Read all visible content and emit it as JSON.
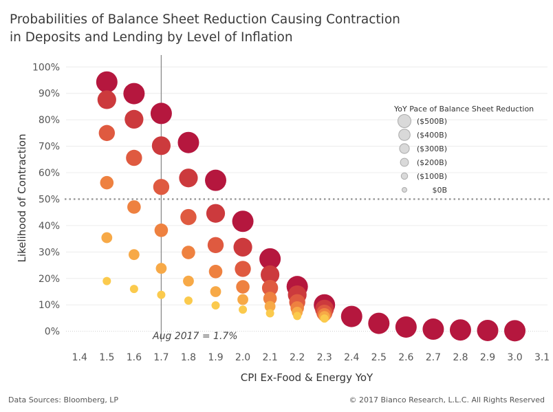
{
  "chart_data": {
    "type": "scatter",
    "title_lines": [
      "Probabilities of Balance Sheet Reduction Causing Contraction",
      "in Deposits and Lending by Level of Inflation"
    ],
    "xlabel": "CPI Ex-Food & Energy YoY",
    "ylabel": "Likelihood of Contraction",
    "xlim": [
      1.35,
      3.12
    ],
    "ylim": [
      -0.04,
      1.045
    ],
    "x_ticks": [
      "1.4",
      "1.5",
      "1.6",
      "1.7",
      "1.8",
      "1.9",
      "2.0",
      "2.1",
      "2.2",
      "2.3",
      "2.4",
      "2.5",
      "2.6",
      "2.7",
      "2.8",
      "2.9",
      "3.0",
      "3.1"
    ],
    "y_ticks": [
      "0%",
      "10%",
      "20%",
      "30%",
      "40%",
      "50%",
      "60%",
      "70%",
      "80%",
      "90%",
      "100%"
    ],
    "grid": "horizontal",
    "legend": {
      "title": "YoY Pace of Balance Sheet Reduction",
      "placement": "right",
      "entries": [
        "($500B)",
        "($400B)",
        "($300B)",
        "($200B)",
        "($100B)",
        "$0B"
      ]
    },
    "reference_lines": [
      {
        "axis": "y",
        "value": 0.5,
        "style": "dotted"
      },
      {
        "axis": "x",
        "value": 1.7,
        "label": "Aug 2017 = 1.7%"
      }
    ],
    "series": [
      {
        "name": "($500B)",
        "color": "#b5173e",
        "size": 5,
        "x": [
          1.5,
          1.6,
          1.7,
          1.8,
          1.9,
          2.0,
          2.1,
          2.2,
          2.3,
          2.4,
          2.5,
          2.6,
          2.7,
          2.8,
          2.9,
          3.0
        ],
        "y": [
          0.943,
          0.899,
          0.824,
          0.714,
          0.571,
          0.416,
          0.274,
          0.169,
          0.1,
          0.056,
          0.03,
          0.016,
          0.008,
          0.005,
          0.003,
          0.002
        ]
      },
      {
        "name": "($400B)",
        "color": "#cc3a3d",
        "size": 4,
        "x": [
          1.5,
          1.6,
          1.7,
          1.8,
          1.9,
          2.0,
          2.1,
          2.2,
          2.3
        ],
        "y": [
          0.876,
          0.802,
          0.702,
          0.58,
          0.446,
          0.318,
          0.214,
          0.138,
          0.084
        ]
      },
      {
        "name": "($300B)",
        "color": "#df5a40",
        "size": 3,
        "x": [
          1.5,
          1.6,
          1.7,
          1.8,
          1.9,
          2.0,
          2.1,
          2.2,
          2.3
        ],
        "y": [
          0.75,
          0.656,
          0.546,
          0.432,
          0.326,
          0.236,
          0.164,
          0.11,
          0.07
        ]
      },
      {
        "name": "($200B)",
        "color": "#ee8140",
        "size": 2,
        "x": [
          1.5,
          1.6,
          1.7,
          1.8,
          1.9,
          2.0,
          2.1,
          2.2,
          2.3
        ],
        "y": [
          0.562,
          0.47,
          0.382,
          0.298,
          0.226,
          0.168,
          0.124,
          0.088,
          0.062
        ]
      },
      {
        "name": "($100B)",
        "color": "#f7a947",
        "size": 1,
        "x": [
          1.5,
          1.6,
          1.7,
          1.8,
          1.9,
          2.0,
          2.1,
          2.2,
          2.3
        ],
        "y": [
          0.354,
          0.29,
          0.238,
          0.19,
          0.15,
          0.12,
          0.094,
          0.072,
          0.056
        ]
      },
      {
        "name": "$0B",
        "color": "#fbca4d",
        "size": 0,
        "x": [
          1.5,
          1.6,
          1.7,
          1.8,
          1.9,
          2.0,
          2.1,
          2.2,
          2.3
        ],
        "y": [
          0.19,
          0.16,
          0.138,
          0.116,
          0.098,
          0.082,
          0.068,
          0.058,
          0.048
        ]
      }
    ]
  },
  "footer": {
    "source": "Data Sources: Bloomberg, LP",
    "copyright": "© 2017 Bianco Research, L.L.C. All Rights Reserved"
  }
}
